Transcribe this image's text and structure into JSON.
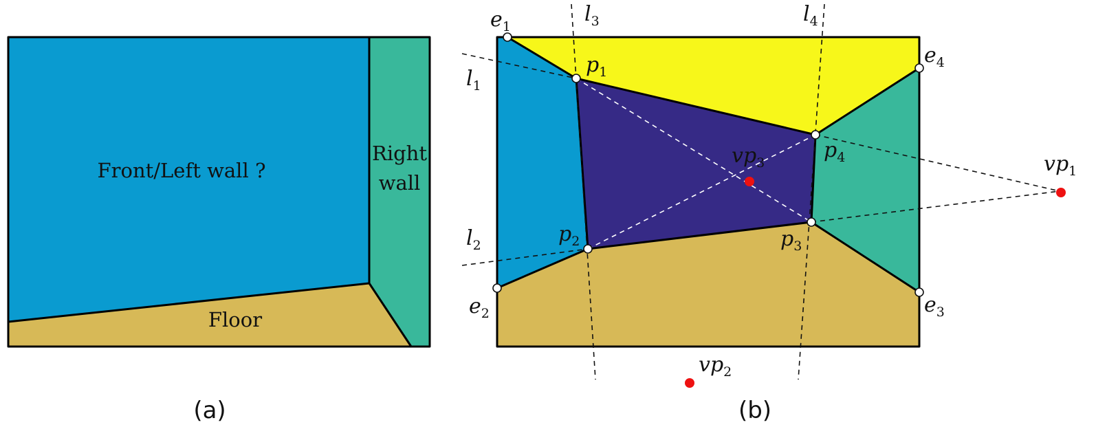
{
  "colors": {
    "front_wall": "#0a9bd0",
    "right_wall": "#39b89b",
    "floor": "#d7b957",
    "ceiling": "#f7f71a",
    "center_wall": "#362a86",
    "vanishing_point": "#ee1111"
  },
  "panel_a": {
    "caption": "(a)",
    "front_wall_label": "Front/Left wall ?",
    "right_wall_label_1": "Right",
    "right_wall_label_2": "wall",
    "floor_label": "Floor"
  },
  "panel_b": {
    "caption": "(b)",
    "lines": {
      "l1": {
        "base": "l",
        "sub": "1"
      },
      "l2": {
        "base": "l",
        "sub": "2"
      },
      "l3": {
        "base": "l",
        "sub": "3"
      },
      "l4": {
        "base": "l",
        "sub": "4"
      }
    },
    "points": {
      "p1": {
        "base": "p",
        "sub": "1"
      },
      "p2": {
        "base": "p",
        "sub": "2"
      },
      "p3": {
        "base": "p",
        "sub": "3"
      },
      "p4": {
        "base": "p",
        "sub": "4"
      }
    },
    "edges": {
      "e1": {
        "base": "e",
        "sub": "1"
      },
      "e2": {
        "base": "e",
        "sub": "2"
      },
      "e3": {
        "base": "e",
        "sub": "3"
      },
      "e4": {
        "base": "e",
        "sub": "4"
      }
    },
    "vanishing_points": {
      "vp1": {
        "base": "vp",
        "sub": "1"
      },
      "vp2": {
        "base": "vp",
        "sub": "2"
      },
      "vp3": {
        "base": "vp",
        "sub": "3"
      }
    }
  }
}
